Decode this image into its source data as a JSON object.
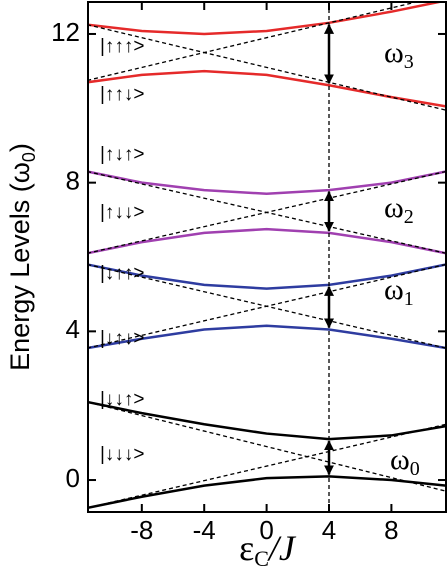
{
  "chart_data": {
    "type": "line",
    "y_label": [
      "Energy  Levels (ω",
      "0",
      ")"
    ],
    "x_label": [
      "ε",
      "C",
      "/J"
    ],
    "xlim": [
      -11.45,
      11.5
    ],
    "ylim": [
      -0.86,
      12.86
    ],
    "xticks": [
      -8,
      -4,
      0,
      4,
      8
    ],
    "yticks": [
      0,
      4,
      8,
      12
    ],
    "vline": 4,
    "states": [
      "|↑↑↑>",
      "|↑↑↓>",
      "|↑↓↑>",
      "|↑↓↓>",
      "|↓↑↑>",
      "|↓↑↓>",
      "|↓↓↑>",
      "|↓↓↓>"
    ],
    "annotations": [
      [
        "ω",
        "3"
      ],
      [
        "ω",
        "2"
      ],
      [
        "ω",
        "1"
      ],
      [
        "ω",
        "0"
      ]
    ],
    "series": [
      {
        "color": "#e52a2a",
        "x": [
          -11.5,
          -8,
          -4,
          0,
          4,
          8,
          11.5
        ],
        "values": [
          12.25,
          12.08,
          12.0,
          12.08,
          12.3,
          12.6,
          12.9
        ]
      },
      {
        "color": "#e52a2a",
        "x": [
          -11.5,
          -8,
          -4,
          0,
          4,
          8,
          11.5
        ],
        "values": [
          10.7,
          10.9,
          11.0,
          10.9,
          10.62,
          10.3,
          10.05
        ]
      },
      {
        "color": "#a040b0",
        "x": [
          -11.5,
          -8,
          -4,
          0,
          4,
          8,
          11.5
        ],
        "values": [
          8.3,
          8.0,
          7.8,
          7.7,
          7.8,
          8.0,
          8.3
        ]
      },
      {
        "color": "#a040b0",
        "x": [
          -11.5,
          -8,
          -4,
          0,
          4,
          8,
          11.5
        ],
        "values": [
          6.1,
          6.4,
          6.65,
          6.75,
          6.65,
          6.4,
          6.1
        ]
      },
      {
        "color": "#2e3ca0",
        "x": [
          -11.5,
          -8,
          -4,
          0,
          4,
          8,
          11.5
        ],
        "values": [
          5.8,
          5.5,
          5.25,
          5.15,
          5.25,
          5.5,
          5.8
        ]
      },
      {
        "color": "#2e3ca0",
        "x": [
          -11.5,
          -8,
          -4,
          0,
          4,
          8,
          11.5
        ],
        "values": [
          3.55,
          3.8,
          4.05,
          4.15,
          4.05,
          3.8,
          3.55
        ]
      },
      {
        "color": "#000000",
        "x": [
          -11.5,
          -8,
          -4,
          0,
          4,
          8,
          11.5
        ],
        "values": [
          2.1,
          1.8,
          1.5,
          1.25,
          1.1,
          1.2,
          1.45
        ]
      },
      {
        "color": "#000000",
        "x": [
          -11.5,
          -8,
          -4,
          0,
          4,
          8,
          11.5
        ],
        "values": [
          -0.75,
          -0.45,
          -0.15,
          0.05,
          0.1,
          0.0,
          -0.15
        ]
      },
      {
        "color": "#000000",
        "dash": true,
        "x": [
          -11.5,
          11.5
        ],
        "values": [
          10.75,
          13.05
        ]
      },
      {
        "color": "#000000",
        "dash": true,
        "x": [
          -11.5,
          11.5
        ],
        "values": [
          12.25,
          9.95
        ]
      },
      {
        "color": "#000000",
        "dash": true,
        "x": [
          -11.5,
          11.5
        ],
        "values": [
          8.3,
          6.1
        ]
      },
      {
        "color": "#000000",
        "dash": true,
        "x": [
          -11.5,
          11.5
        ],
        "values": [
          6.1,
          8.3
        ]
      },
      {
        "color": "#000000",
        "dash": true,
        "x": [
          -11.5,
          11.5
        ],
        "values": [
          5.8,
          3.55
        ]
      },
      {
        "color": "#000000",
        "dash": true,
        "x": [
          -11.5,
          11.5
        ],
        "values": [
          3.55,
          5.8
        ]
      },
      {
        "color": "#000000",
        "dash": true,
        "x": [
          -11.5,
          11.5
        ],
        "values": [
          2.1,
          -0.3
        ]
      },
      {
        "color": "#000000",
        "dash": true,
        "x": [
          -11.5,
          11.5
        ],
        "values": [
          -0.75,
          1.5
        ]
      }
    ]
  }
}
